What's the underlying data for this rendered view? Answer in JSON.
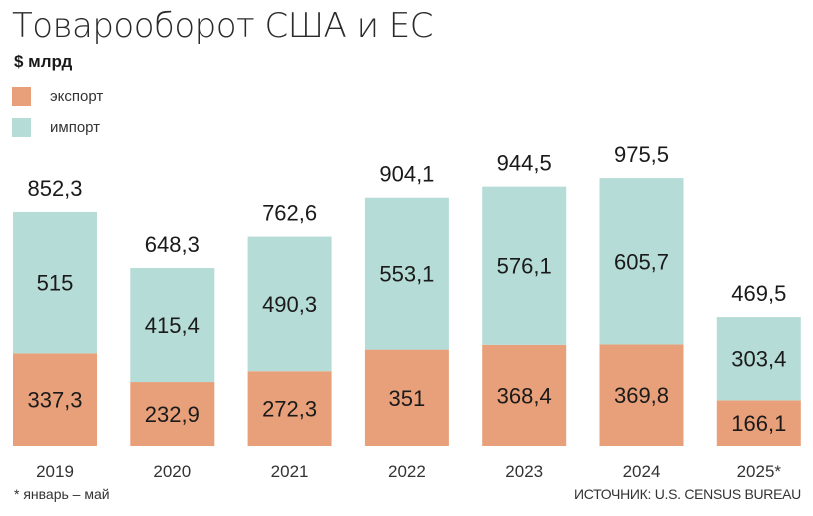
{
  "title": "Товарооборот США и ЕС",
  "unit": "$ млрд",
  "legend": [
    {
      "label": "экспорт",
      "color": "#e8a07a"
    },
    {
      "label": "импорт",
      "color": "#b5dcd6"
    }
  ],
  "footnote": "* январь – май",
  "source": "ИСТОЧНИК: U.S. CENSUS BUREAU",
  "chart_data": {
    "type": "bar",
    "stacked": true,
    "categories": [
      "2019",
      "2020",
      "2021",
      "2022",
      "2023",
      "2024",
      "2025*"
    ],
    "series": [
      {
        "name": "экспорт",
        "color": "#e8a07a",
        "values": [
          337.3,
          232.9,
          272.3,
          351,
          368.4,
          369.8,
          166.1
        ],
        "labels": [
          "337,3",
          "232,9",
          "272,3",
          "351",
          "368,4",
          "369,8",
          "166,1"
        ]
      },
      {
        "name": "импорт",
        "color": "#b5dcd6",
        "values": [
          515,
          415.4,
          490.3,
          553.1,
          576.1,
          605.7,
          303.4
        ],
        "labels": [
          "515",
          "415,4",
          "490,3",
          "553,1",
          "576,1",
          "605,7",
          "303,4"
        ]
      }
    ],
    "totals": [
      "852,3",
      "648,3",
      "762,6",
      "904,1",
      "944,5",
      "975,5",
      "469,5"
    ],
    "grid": false,
    "legend_position": "top-left"
  }
}
